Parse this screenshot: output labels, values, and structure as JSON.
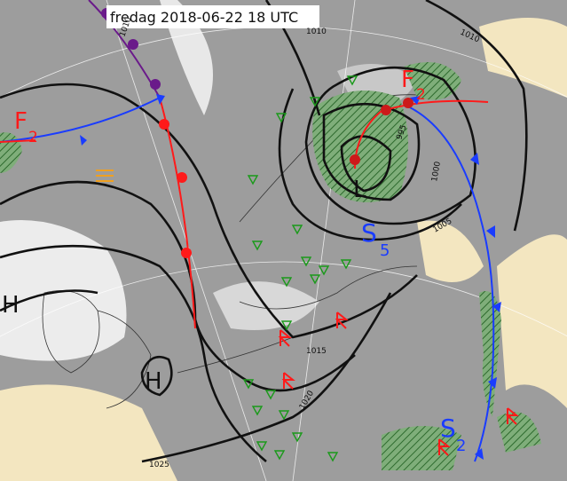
{
  "header": {
    "title": "fredag 2018-06-22 18 UTC"
  },
  "isobar_labels": [
    "1010",
    "1010",
    "1010",
    "995",
    "1000",
    "1005",
    "1015",
    "1020",
    "1025"
  ],
  "pressure_centers": [
    "H",
    "H",
    "L"
  ],
  "front_labels": [
    {
      "letter": "F",
      "sub": "2"
    },
    {
      "letter": "F",
      "sub": "2"
    },
    {
      "letter": "S",
      "sub": "5"
    },
    {
      "letter": "S",
      "sub": "2"
    }
  ]
}
